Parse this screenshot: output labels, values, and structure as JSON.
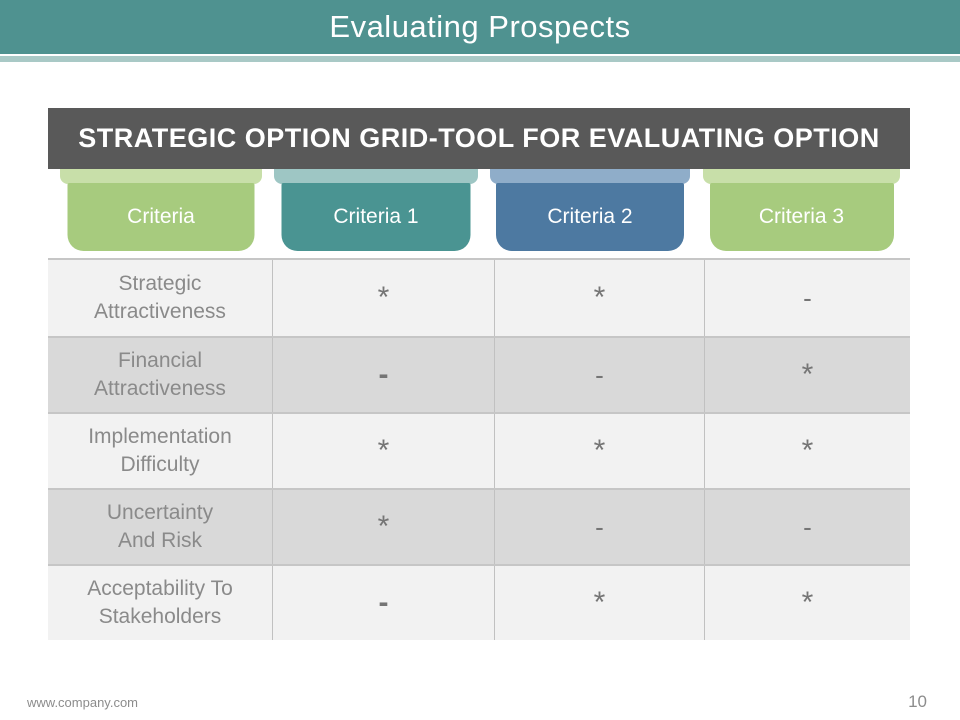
{
  "header": {
    "title": "Evaluating Prospects"
  },
  "banner": {
    "title": "STRATEGIC OPTION GRID-TOOL FOR EVALUATING OPTION"
  },
  "tabs": [
    {
      "label": "Criteria",
      "color": "#a7cb7e",
      "back_color": "#c8dfa9"
    },
    {
      "label": "Criteria 1",
      "color": "#4a9492",
      "back_color": "#9ec6c4"
    },
    {
      "label": "Criteria 2",
      "color": "#4d79a1",
      "back_color": "#8fadc9"
    },
    {
      "label": "Criteria 3",
      "color": "#a7cb7e",
      "back_color": "#c8dfa9"
    }
  ],
  "grid": {
    "rows": [
      {
        "label": "Strategic\nAttractiveness",
        "cells": [
          {
            "glyph": "*",
            "kind": "star"
          },
          {
            "glyph": "*",
            "kind": "star"
          },
          {
            "glyph": "-",
            "kind": "dash"
          }
        ]
      },
      {
        "label": "Financial\nAttractiveness",
        "cells": [
          {
            "glyph": "-",
            "kind": "bold-dash"
          },
          {
            "glyph": "-",
            "kind": "dash"
          },
          {
            "glyph": "*",
            "kind": "star"
          }
        ]
      },
      {
        "label": "Implementation\nDifficulty",
        "cells": [
          {
            "glyph": "*",
            "kind": "star"
          },
          {
            "glyph": "*",
            "kind": "star"
          },
          {
            "glyph": "*",
            "kind": "star"
          }
        ]
      },
      {
        "label": "Uncertainty\nAnd Risk",
        "cells": [
          {
            "glyph": "*",
            "kind": "star"
          },
          {
            "glyph": "-",
            "kind": "dash"
          },
          {
            "glyph": "-",
            "kind": "dash"
          }
        ]
      },
      {
        "label": "Acceptability To\nStakeholders",
        "cells": [
          {
            "glyph": "-",
            "kind": "bold-dash"
          },
          {
            "glyph": "*",
            "kind": "star"
          },
          {
            "glyph": "*",
            "kind": "star"
          }
        ]
      }
    ]
  },
  "footer": {
    "url": "www.company.com",
    "page_number": "10"
  },
  "colors": {
    "header_teal": "#4f9290",
    "accent_band": "#a9c9c6",
    "banner_gray": "#595959",
    "row_light": "#f2f2f2",
    "row_dark": "#d9d9d9",
    "label_text": "#8a8a8a",
    "symbol_text": "#757575"
  }
}
